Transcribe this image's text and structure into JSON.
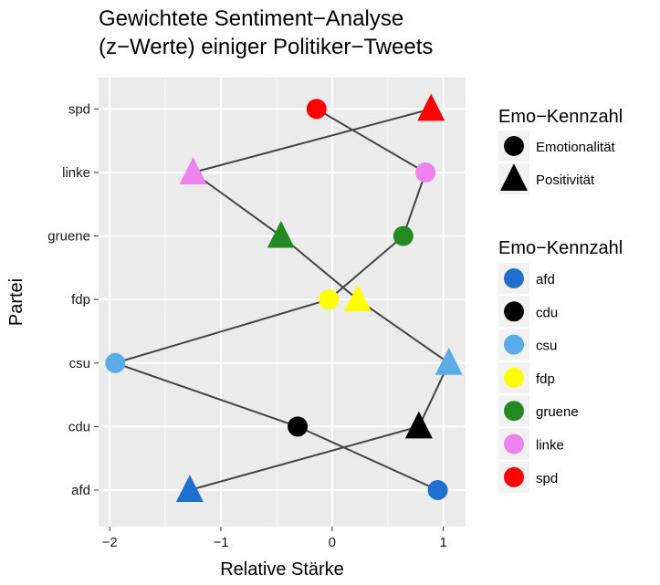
{
  "chart_data": {
    "type": "scatter",
    "title_lines": [
      "Gewichtete Sentiment−Analyse",
      "(z−Werte) einiger Politiker−Tweets"
    ],
    "xlabel": "Relative Stärke",
    "ylabel": "Partei",
    "xlim": [
      -2.1,
      1.2
    ],
    "x_ticks": [
      -2,
      -1,
      0,
      1
    ],
    "x_tick_labels": [
      "−2",
      "−1",
      "0",
      "1"
    ],
    "categories": [
      "afd",
      "cdu",
      "csu",
      "fdp",
      "gruene",
      "linke",
      "spd"
    ],
    "grid": true,
    "panel_background": "#ebebeb",
    "line_color": "#444444",
    "party_colors": {
      "afd": "#1f6fce",
      "cdu": "#000000",
      "csu": "#5aace8",
      "fdp": "#ffff00",
      "gruene": "#228b22",
      "linke": "#ee82ee",
      "spd": "#ff0000"
    },
    "points": [
      {
        "party": "afd",
        "measure": "Emotionalität",
        "x": 0.95
      },
      {
        "party": "afd",
        "measure": "Positivität",
        "x": -1.28
      },
      {
        "party": "cdu",
        "measure": "Emotionalität",
        "x": -0.31
      },
      {
        "party": "cdu",
        "measure": "Positivität",
        "x": 0.78
      },
      {
        "party": "csu",
        "measure": "Emotionalität",
        "x": -1.95
      },
      {
        "party": "csu",
        "measure": "Positivität",
        "x": 1.05
      },
      {
        "party": "fdp",
        "measure": "Emotionalität",
        "x": -0.03
      },
      {
        "party": "fdp",
        "measure": "Positivität",
        "x": 0.23
      },
      {
        "party": "gruene",
        "measure": "Emotionalität",
        "x": 0.64
      },
      {
        "party": "gruene",
        "measure": "Positivität",
        "x": -0.46
      },
      {
        "party": "linke",
        "measure": "Emotionalität",
        "x": 0.84
      },
      {
        "party": "linke",
        "measure": "Positivität",
        "x": -1.25
      },
      {
        "party": "spd",
        "measure": "Emotionalität",
        "x": -0.14
      },
      {
        "party": "spd",
        "measure": "Positivität",
        "x": 0.89
      }
    ],
    "connections": [
      [
        [
          "spd",
          "Emotionalität"
        ],
        [
          "linke",
          "Emotionalität"
        ]
      ],
      [
        [
          "spd",
          "Positivität"
        ],
        [
          "linke",
          "Positivität"
        ]
      ],
      [
        [
          "linke",
          "Emotionalität"
        ],
        [
          "gruene",
          "Emotionalität"
        ]
      ],
      [
        [
          "linke",
          "Positivität"
        ],
        [
          "gruene",
          "Positivität"
        ]
      ],
      [
        [
          "gruene",
          "Emotionalität"
        ],
        [
          "fdp",
          "Emotionalität"
        ]
      ],
      [
        [
          "gruene",
          "Positivität"
        ],
        [
          "fdp",
          "Positivität"
        ]
      ],
      [
        [
          "fdp",
          "Emotionalität"
        ],
        [
          "csu",
          "Emotionalität"
        ]
      ],
      [
        [
          "fdp",
          "Positivität"
        ],
        [
          "csu",
          "Positivität"
        ]
      ],
      [
        [
          "csu",
          "Emotionalität"
        ],
        [
          "cdu",
          "Emotionalität"
        ]
      ],
      [
        [
          "csu",
          "Positivität"
        ],
        [
          "cdu",
          "Positivität"
        ]
      ],
      [
        [
          "cdu",
          "Emotionalität"
        ],
        [
          "afd",
          "Emotionalität"
        ]
      ],
      [
        [
          "cdu",
          "Positivität"
        ],
        [
          "afd",
          "Positivität"
        ]
      ]
    ],
    "legend_shape": {
      "title": "Emo−Kennzahl",
      "entries": [
        {
          "label": "Emotionalität",
          "shape": "circle"
        },
        {
          "label": "Positivität",
          "shape": "triangle"
        }
      ]
    },
    "legend_color": {
      "title": "Emo−Kennzahl",
      "entries": [
        "afd",
        "cdu",
        "csu",
        "fdp",
        "gruene",
        "linke",
        "spd"
      ]
    },
    "legend_position": "right"
  }
}
